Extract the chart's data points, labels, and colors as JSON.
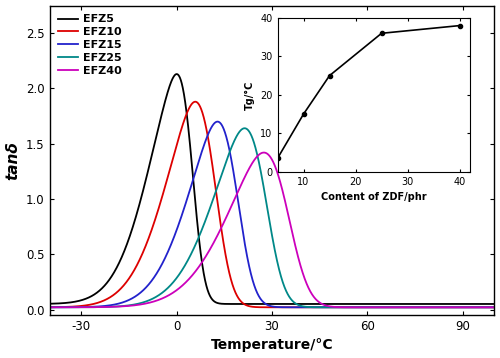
{
  "series": [
    {
      "label": "EFZ5",
      "color": "#000000",
      "peak_temp": 5,
      "peak_val": 2.08,
      "sigma": 12,
      "skew": -4,
      "baseline": 0.05
    },
    {
      "label": "EFZ10",
      "color": "#DD0000",
      "peak_temp": 12,
      "peak_val": 1.86,
      "sigma": 13,
      "skew": -3,
      "baseline": 0.02
    },
    {
      "label": "EFZ15",
      "color": "#2222CC",
      "peak_temp": 19,
      "peak_val": 1.68,
      "sigma": 13,
      "skew": -3,
      "baseline": 0.02
    },
    {
      "label": "EFZ25",
      "color": "#008888",
      "peak_temp": 28,
      "peak_val": 1.62,
      "sigma": 14,
      "skew": -3,
      "baseline": 0.02
    },
    {
      "label": "EFZ40",
      "color": "#CC00BB",
      "peak_temp": 35,
      "peak_val": 1.4,
      "sigma": 16,
      "skew": -3,
      "baseline": 0.02
    }
  ],
  "xmin": -40,
  "xmax": 100,
  "ymin": -0.05,
  "ymax": 2.75,
  "xlabel": "Temperature/°C",
  "ylabel": "tanδ",
  "xticks": [
    -30,
    0,
    30,
    60,
    90
  ],
  "yticks": [
    0.0,
    0.5,
    1.0,
    1.5,
    2.0,
    2.5
  ],
  "inset": {
    "x_data": [
      5,
      10,
      15,
      25,
      40
    ],
    "y_data": [
      3.5,
      15,
      25,
      36,
      38
    ],
    "xlabel": "Content of ZDF/phr",
    "ylabel": "Tg/°C",
    "xlim": [
      5,
      42
    ],
    "ylim": [
      0,
      40
    ],
    "xticks": [
      10,
      20,
      30,
      40
    ],
    "yticks": [
      0,
      10,
      20,
      30,
      40
    ]
  }
}
